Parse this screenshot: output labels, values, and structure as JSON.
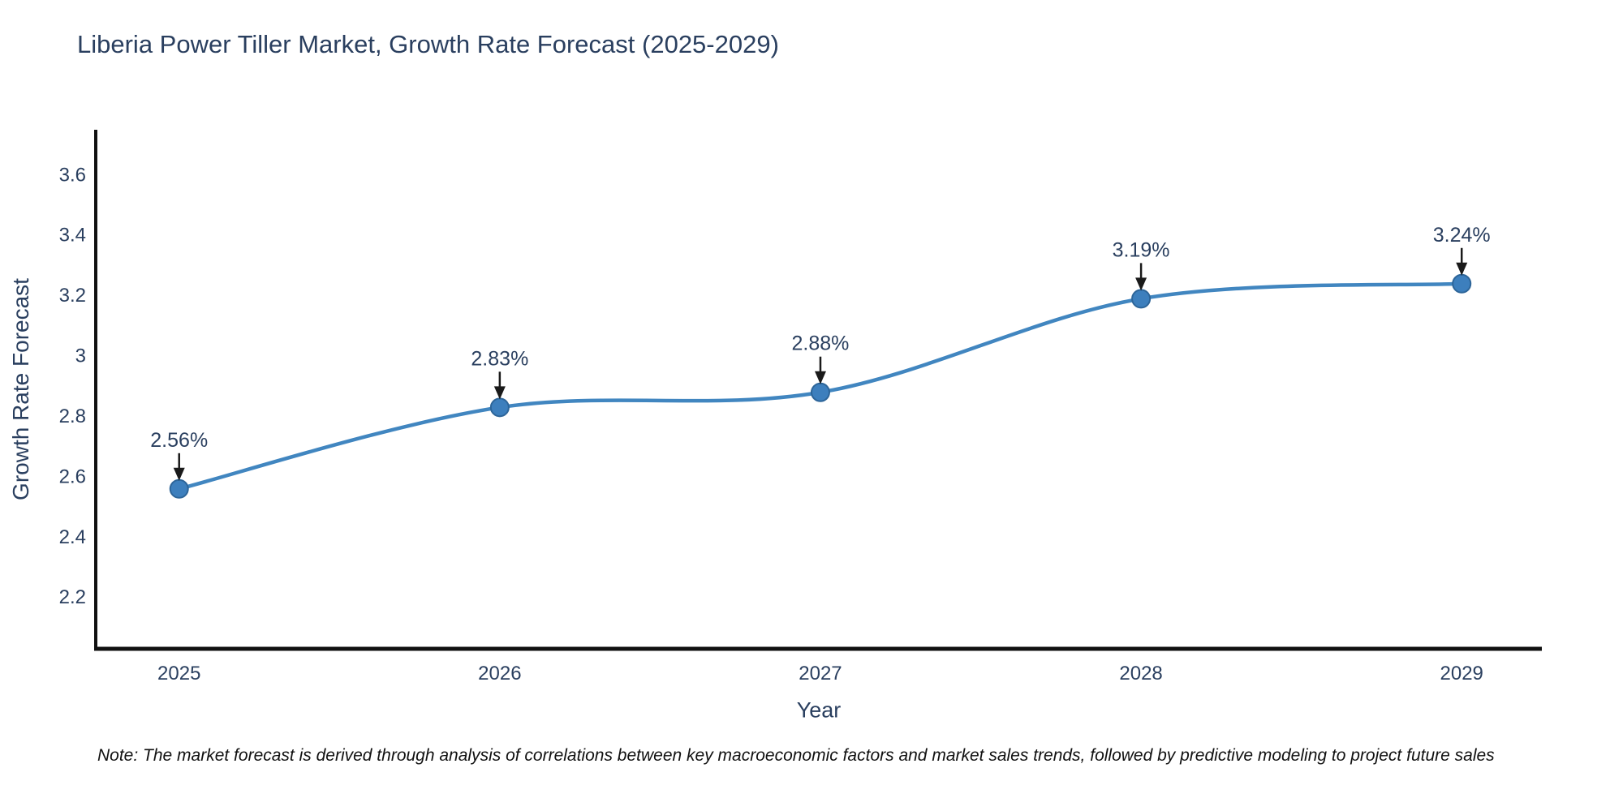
{
  "title": "Liberia Power Tiller Market, Growth Rate Forecast (2025-2029)",
  "footnote": "Note: The market forecast is derived through analysis of correlations between key macroeconomic factors and market sales trends, followed by predictive modeling to project future sales",
  "chart_data": {
    "type": "line",
    "title": "Liberia Power Tiller Market, Growth Rate Forecast (2025-2029)",
    "xlabel": "Year",
    "ylabel": "Growth Rate Forecast",
    "x": [
      2025,
      2026,
      2027,
      2028,
      2029
    ],
    "series": [
      {
        "name": "Growth Rate Forecast",
        "values": [
          2.56,
          2.83,
          2.88,
          3.19,
          3.24
        ],
        "point_labels": [
          "2.56%",
          "2.83%",
          "2.88%",
          "3.19%",
          "3.24%"
        ]
      }
    ],
    "line_shape": "spline",
    "markers": true,
    "annotations_with_arrows": true,
    "grid": false,
    "legend": "none",
    "xtick_labels": [
      "2025",
      "2026",
      "2027",
      "2028",
      "2029"
    ],
    "yticks": [
      2.2,
      2.4,
      2.6,
      2.8,
      3,
      3.2,
      3.4,
      3.6
    ],
    "ytick_labels": [
      "2.2",
      "2.4",
      "2.6",
      "2.8",
      "3",
      "3.2",
      "3.4",
      "3.6"
    ],
    "xlim": [
      2024.74,
      2029.25
    ],
    "ylim": [
      2.03,
      3.75
    ],
    "colors": {
      "line": "#4186c0",
      "marker_fill": "#3d7fbd",
      "marker_edge": "#2d6599",
      "axis_line": "#111111",
      "tick_text": "#2a3f5f",
      "annotation_text": "#2a3f5f",
      "arrow": "#1a1a1a",
      "background": "#ffffff"
    }
  }
}
